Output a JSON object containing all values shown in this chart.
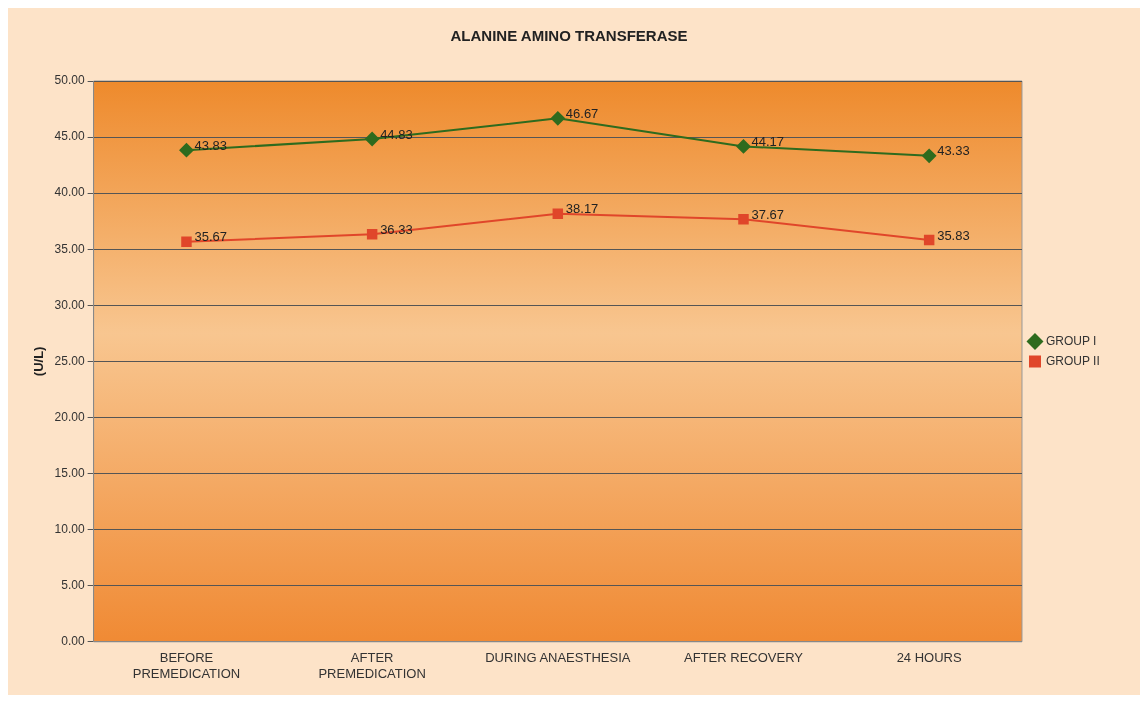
{
  "chart_data": {
    "type": "line",
    "title": "ALANINE AMINO TRANSFERASE",
    "ylabel": "(U/L)",
    "categories": [
      "BEFORE PREMEDICATION",
      "AFTER PREMEDICATION",
      "DURING ANAESTHESIA",
      "AFTER RECOVERY",
      "24 HOURS"
    ],
    "series": [
      {
        "name": "GROUP I",
        "color": "#2e6b1e",
        "marker": "diamond",
        "values": [
          43.83,
          44.83,
          46.67,
          44.17,
          43.33
        ]
      },
      {
        "name": "GROUP II",
        "color": "#e0462a",
        "marker": "square",
        "values": [
          35.67,
          36.33,
          38.17,
          37.67,
          35.83
        ]
      }
    ],
    "ylim": [
      0,
      50
    ],
    "yticks": [
      {
        "value": 0,
        "label": "0.00"
      },
      {
        "value": 5,
        "label": "5.00"
      },
      {
        "value": 10,
        "label": "10.00"
      },
      {
        "value": 15,
        "label": "15.00"
      },
      {
        "value": 20,
        "label": "20.00"
      },
      {
        "value": 25,
        "label": "25.00"
      },
      {
        "value": 30,
        "label": "30.00"
      },
      {
        "value": 35,
        "label": "35.00"
      },
      {
        "value": 40,
        "label": "40.00"
      },
      {
        "value": 45,
        "label": "45.00"
      },
      {
        "value": 50,
        "label": "50.00"
      }
    ],
    "grid": "y",
    "legend": "right",
    "data_labels": true,
    "line_style": "solid"
  }
}
